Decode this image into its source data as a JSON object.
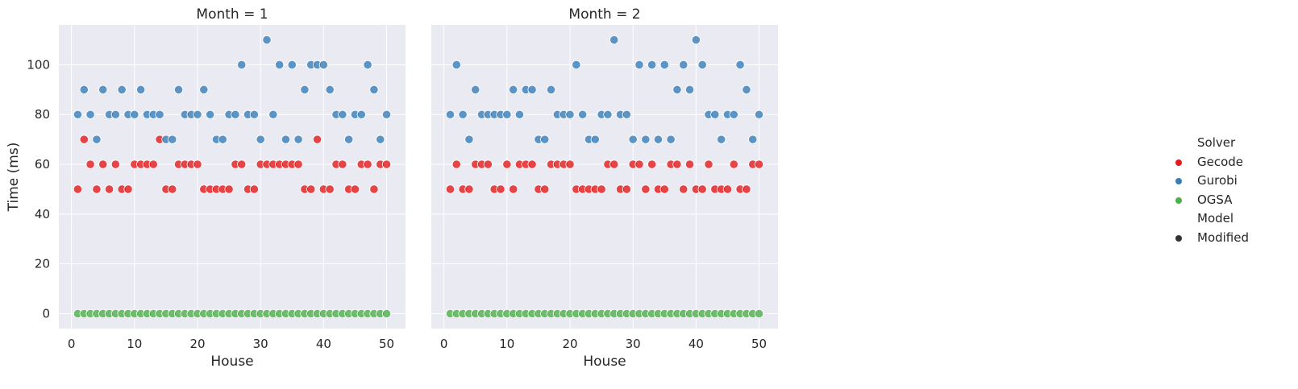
{
  "chart_data": {
    "type": "scatter",
    "x_label": "House",
    "y_label": "Time (ms)",
    "x_ticks": [
      0,
      10,
      20,
      30,
      40,
      50
    ],
    "y_ticks": [
      0,
      20,
      40,
      60,
      80,
      100
    ],
    "xlim": [
      -2,
      53
    ],
    "ylim": [
      -6,
      116
    ],
    "grid": true,
    "legend_placement": "right",
    "legend": {
      "hue_title": "Solver",
      "style_title": "Model",
      "style_entry": "Modified",
      "colors": {
        "Gecode": "#e41a1c",
        "Gurobi": "#377eb8",
        "OGSA": "#4daf4a",
        "Modified": "#333333"
      }
    },
    "x": [
      1,
      2,
      3,
      4,
      5,
      6,
      7,
      8,
      9,
      10,
      11,
      12,
      13,
      14,
      15,
      16,
      17,
      18,
      19,
      20,
      21,
      22,
      23,
      24,
      25,
      26,
      27,
      28,
      29,
      30,
      31,
      32,
      33,
      34,
      35,
      36,
      37,
      38,
      39,
      40,
      41,
      42,
      43,
      44,
      45,
      46,
      47,
      48,
      49,
      50
    ],
    "panels": [
      {
        "title": "Month = 1",
        "series": [
          {
            "name": "Gecode",
            "values": [
              50,
              70,
              60,
              50,
              60,
              50,
              60,
              50,
              50,
              60,
              60,
              60,
              60,
              70,
              50,
              50,
              60,
              60,
              60,
              60,
              50,
              50,
              50,
              50,
              50,
              60,
              60,
              50,
              50,
              60,
              60,
              60,
              60,
              60,
              60,
              60,
              50,
              50,
              70,
              50,
              50,
              60,
              60,
              50,
              50,
              60,
              60,
              50,
              60,
              60
            ]
          },
          {
            "name": "Gurobi",
            "values": [
              80,
              90,
              80,
              70,
              90,
              80,
              80,
              90,
              80,
              80,
              90,
              80,
              80,
              80,
              70,
              70,
              90,
              80,
              80,
              80,
              90,
              80,
              70,
              70,
              80,
              80,
              100,
              80,
              80,
              70,
              110,
              80,
              100,
              70,
              100,
              70,
              90,
              100,
              100,
              100,
              90,
              80,
              80,
              70,
              80,
              80,
              100,
              90,
              70,
              80
            ]
          },
          {
            "name": "OGSA",
            "values": [
              0,
              0,
              0,
              0,
              0,
              0,
              0,
              0,
              0,
              0,
              0,
              0,
              0,
              0,
              0,
              0,
              0,
              0,
              0,
              0,
              0,
              0,
              0,
              0,
              0,
              0,
              0,
              0,
              0,
              0,
              0,
              0,
              0,
              0,
              0,
              0,
              0,
              0,
              0,
              0,
              0,
              0,
              0,
              0,
              0,
              0,
              0,
              0,
              0,
              0
            ]
          }
        ]
      },
      {
        "title": "Month = 2",
        "series": [
          {
            "name": "Gecode",
            "values": [
              50,
              60,
              50,
              50,
              60,
              60,
              60,
              50,
              50,
              60,
              50,
              60,
              60,
              60,
              50,
              50,
              60,
              60,
              60,
              60,
              50,
              50,
              50,
              50,
              50,
              60,
              60,
              50,
              50,
              60,
              60,
              50,
              60,
              50,
              50,
              60,
              60,
              50,
              60,
              50,
              50,
              60,
              50,
              50,
              50,
              60,
              50,
              50,
              60,
              60
            ]
          },
          {
            "name": "Gurobi",
            "values": [
              80,
              100,
              80,
              70,
              90,
              80,
              80,
              80,
              80,
              80,
              90,
              80,
              90,
              90,
              70,
              70,
              90,
              80,
              80,
              80,
              100,
              80,
              70,
              70,
              80,
              80,
              110,
              80,
              80,
              70,
              100,
              70,
              100,
              70,
              100,
              70,
              90,
              100,
              90,
              110,
              100,
              80,
              80,
              70,
              80,
              80,
              100,
              90,
              70,
              80
            ]
          },
          {
            "name": "OGSA",
            "values": [
              0,
              0,
              0,
              0,
              0,
              0,
              0,
              0,
              0,
              0,
              0,
              0,
              0,
              0,
              0,
              0,
              0,
              0,
              0,
              0,
              0,
              0,
              0,
              0,
              0,
              0,
              0,
              0,
              0,
              0,
              0,
              0,
              0,
              0,
              0,
              0,
              0,
              0,
              0,
              0,
              0,
              0,
              0,
              0,
              0,
              0,
              0,
              0,
              0,
              0
            ]
          }
        ]
      }
    ]
  }
}
